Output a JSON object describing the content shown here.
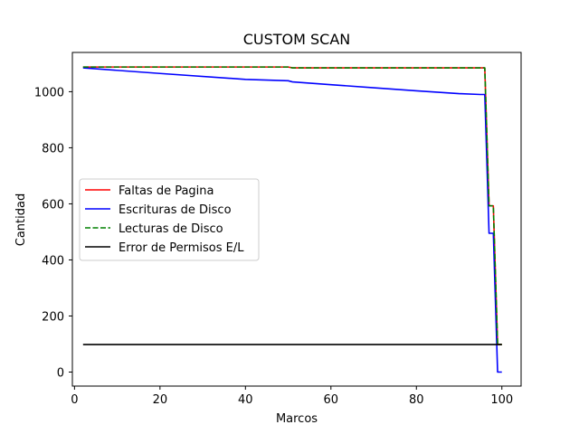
{
  "chart_data": {
    "type": "line",
    "title": "CUSTOM SCAN",
    "xlabel": "Marcos",
    "ylabel": "Cantidad",
    "xlim": [
      -0.5,
      104.5
    ],
    "ylim": [
      -50,
      1140
    ],
    "xticks": [
      0,
      20,
      40,
      60,
      80,
      100
    ],
    "yticks": [
      0,
      200,
      400,
      600,
      800,
      1000
    ],
    "grid": false,
    "legend_position": "center-left",
    "series": [
      {
        "name": "Faltas de Pagina",
        "color": "#ff0000",
        "dash": "solid",
        "x": [
          2,
          10,
          20,
          30,
          40,
          50,
          51,
          60,
          70,
          80,
          90,
          96,
          97,
          98,
          99,
          100
        ],
        "y": [
          1088,
          1088,
          1088,
          1088,
          1088,
          1088,
          1085,
          1085,
          1085,
          1085,
          1085,
          1085,
          593,
          593,
          98,
          98
        ]
      },
      {
        "name": "Escrituras de Disco",
        "color": "#0000ff",
        "dash": "solid",
        "x": [
          2,
          20,
          40,
          50,
          51,
          60,
          70,
          80,
          90,
          95,
          96,
          97,
          98,
          99,
          100
        ],
        "y": [
          1085,
          1065,
          1044,
          1039,
          1035,
          1025,
          1014,
          1003,
          993,
          990,
          990,
          495,
          495,
          0,
          0
        ]
      },
      {
        "name": "Lecturas de Disco",
        "color": "#008000",
        "dash": "dashed",
        "x": [
          2,
          10,
          20,
          30,
          40,
          50,
          51,
          60,
          70,
          80,
          90,
          96,
          97,
          98,
          99,
          100
        ],
        "y": [
          1088,
          1088,
          1088,
          1088,
          1088,
          1088,
          1085,
          1085,
          1085,
          1085,
          1085,
          1085,
          593,
          593,
          98,
          98
        ]
      },
      {
        "name": "Error de Permisos E/L",
        "color": "#000000",
        "dash": "solid",
        "x": [
          2,
          100
        ],
        "y": [
          98,
          98
        ]
      }
    ]
  }
}
